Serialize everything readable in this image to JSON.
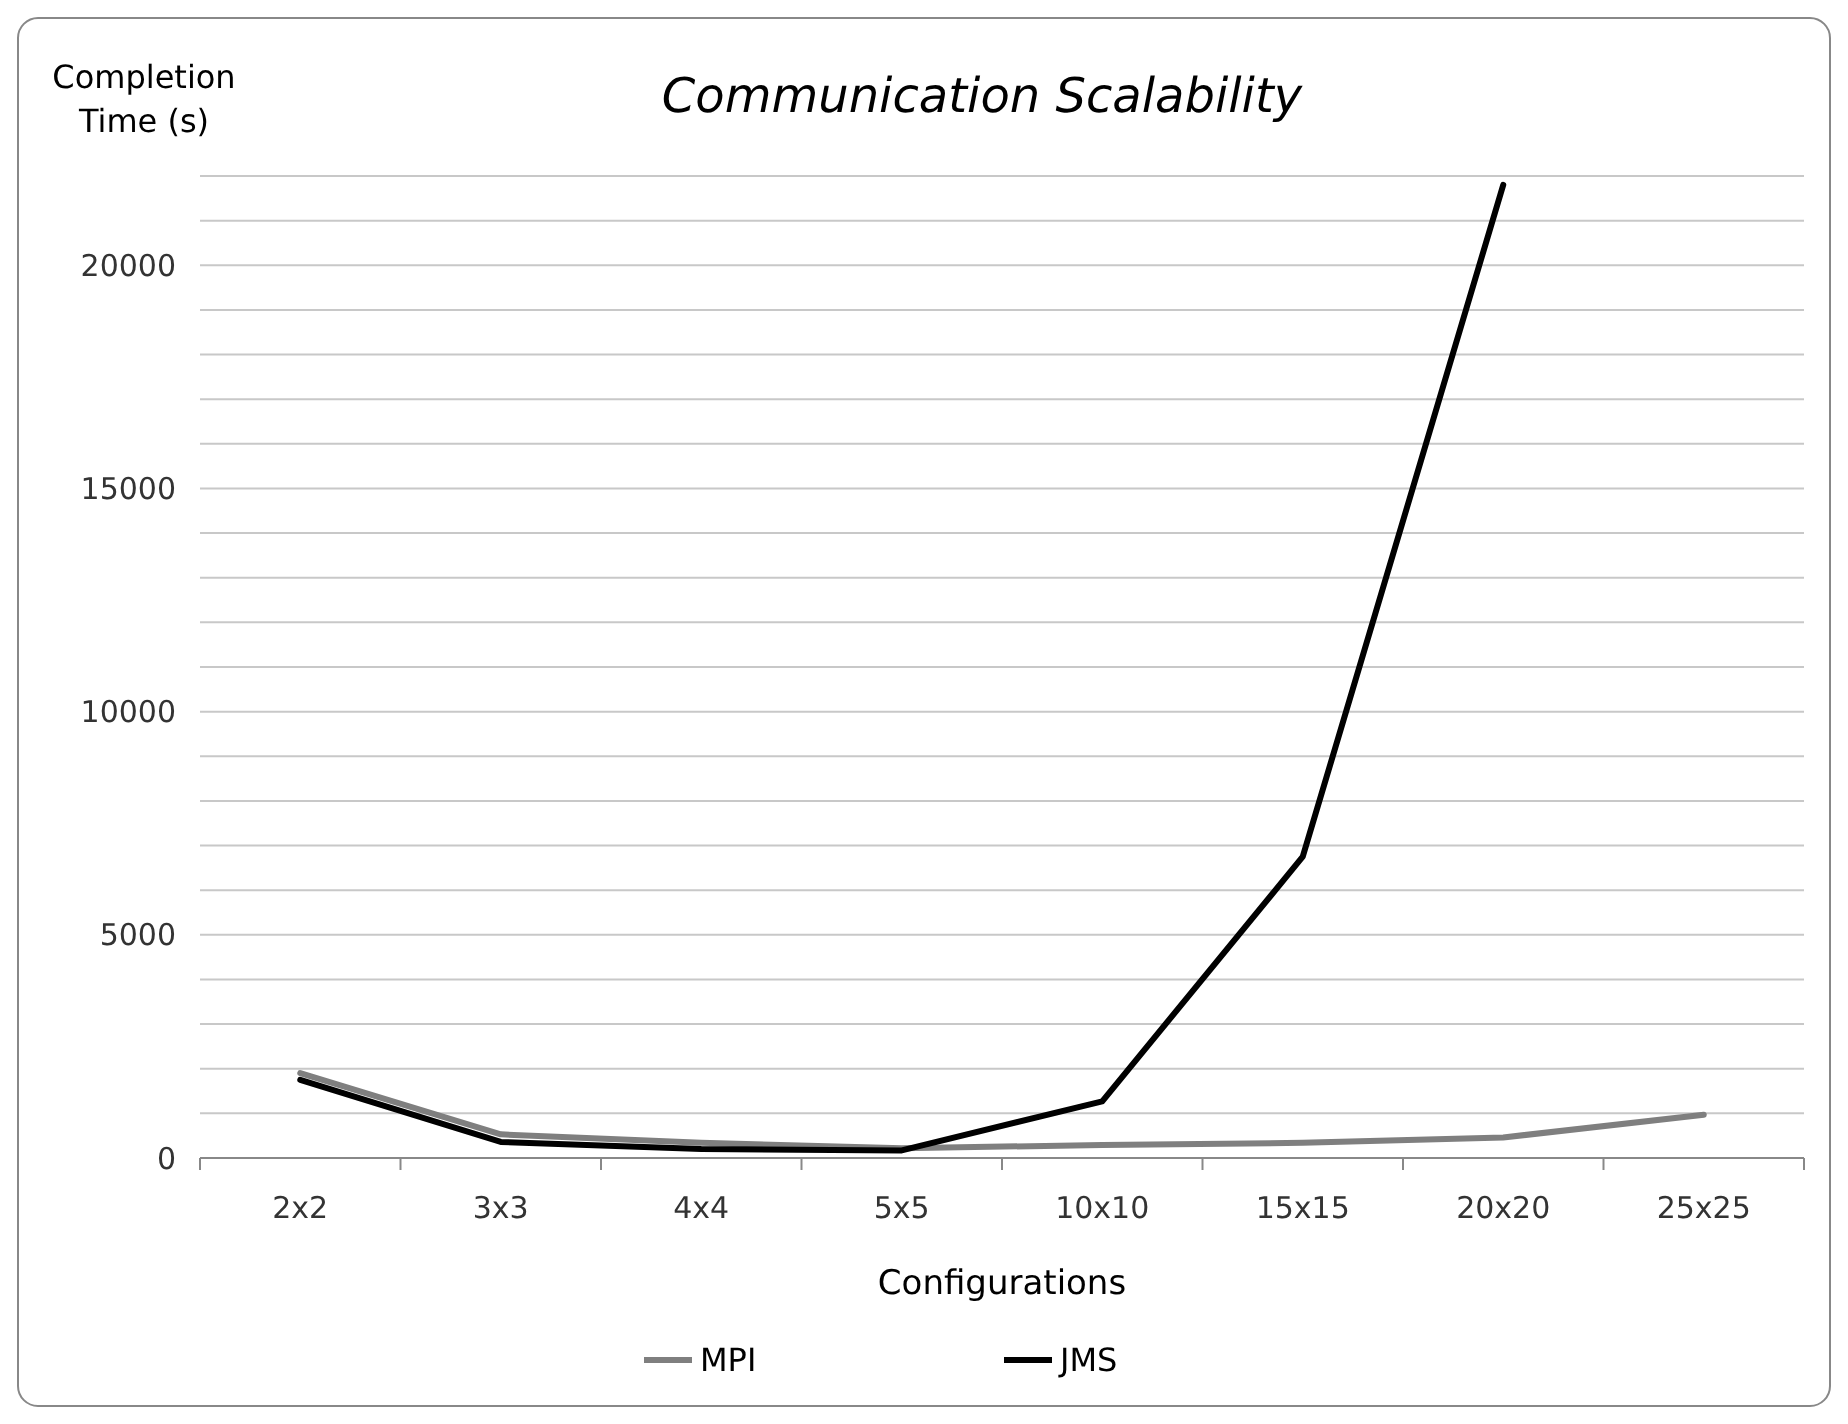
{
  "chart_data": {
    "type": "line",
    "title": "Communication Scalability",
    "xlabel": "Configurations",
    "ylabel": "Completion Time (s)",
    "categories": [
      "2x2",
      "3x3",
      "4x4",
      "5x5",
      "10x10",
      "15x15",
      "20x20",
      "25x25"
    ],
    "series": [
      {
        "name": "MPI",
        "color": "#7f7f7f",
        "values": [
          1900,
          530,
          340,
          220,
          290,
          340,
          460,
          970
        ]
      },
      {
        "name": "JMS",
        "color": "#000000",
        "values": [
          1750,
          360,
          200,
          170,
          1270,
          6750,
          21800,
          null
        ]
      }
    ],
    "ylim": [
      0,
      22000
    ],
    "yticks": [
      0,
      {
        "value": 1000,
        "label": null
      },
      {
        "value": 2000,
        "label": null
      },
      {
        "value": 3000,
        "label": null
      },
      {
        "value": 4000,
        "label": null
      },
      5000,
      {
        "value": 6000,
        "label": null
      },
      {
        "value": 7000,
        "label": null
      },
      {
        "value": 8000,
        "label": null
      },
      {
        "value": 9000,
        "label": null
      },
      10000,
      {
        "value": 11000,
        "label": null
      },
      {
        "value": 12000,
        "label": null
      },
      {
        "value": 13000,
        "label": null
      },
      {
        "value": 14000,
        "label": null
      },
      15000,
      {
        "value": 16000,
        "label": null
      },
      {
        "value": 17000,
        "label": null
      },
      {
        "value": 18000,
        "label": null
      },
      {
        "value": 19000,
        "label": null
      },
      20000,
      {
        "value": 21000,
        "label": null
      },
      {
        "value": 22000,
        "label": null
      }
    ],
    "grid": "y",
    "legend": "bottom",
    "marker": "none",
    "line_style": "solid"
  }
}
